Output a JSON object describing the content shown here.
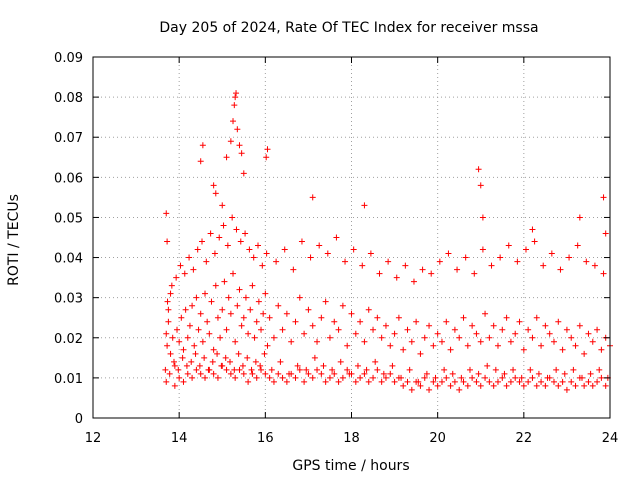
{
  "chart_data": {
    "type": "scatter",
    "title": "Day 205 of 2024, Rate Of TEC Index for receiver mssa",
    "xlabel": "GPS time / hours",
    "ylabel": "ROTI / TECUs",
    "xlim": [
      12,
      24
    ],
    "ylim": [
      0,
      0.09
    ],
    "xticks": [
      12,
      14,
      16,
      18,
      20,
      22,
      24
    ],
    "xtick_labels": [
      "12",
      "14",
      "16",
      "18",
      "20",
      "22",
      "24"
    ],
    "yticks": [
      0,
      0.01,
      0.02,
      0.03,
      0.04,
      0.05,
      0.06,
      0.07,
      0.08,
      0.09
    ],
    "ytick_labels": [
      "0",
      "0.01",
      "0.02",
      "0.03",
      "0.04",
      "0.05",
      "0.06",
      "0.07",
      "0.08",
      "0.09"
    ],
    "grid": true,
    "marker": "+",
    "color": "#ff0000",
    "series": [
      {
        "name": "ROTI",
        "x": [
          13.7,
          13.72,
          13.75,
          13.8,
          13.85,
          13.9,
          13.95,
          14.0,
          14.05,
          14.1,
          14.15,
          14.2,
          14.25,
          14.3,
          14.35,
          14.4,
          14.45,
          14.5,
          14.55,
          14.6,
          14.65,
          14.7,
          14.75,
          14.8,
          14.85,
          14.9,
          14.95,
          15.0,
          15.05,
          15.1,
          15.15,
          15.2,
          15.25,
          15.3,
          15.35,
          15.4,
          15.45,
          15.5,
          15.55,
          15.6,
          15.65,
          15.7,
          15.75,
          15.8,
          15.85,
          15.9,
          15.95,
          16.0,
          16.05,
          16.1,
          16.2,
          16.3,
          16.4,
          16.5,
          16.6,
          16.7,
          16.8,
          16.9,
          17.0,
          17.1,
          17.2,
          17.3,
          17.4,
          17.5,
          17.6,
          17.7,
          17.8,
          17.9,
          18.0,
          18.1,
          18.2,
          18.3,
          18.4,
          18.5,
          18.6,
          18.7,
          18.8,
          18.9,
          19.0,
          19.1,
          19.2,
          19.3,
          19.4,
          19.5,
          19.6,
          19.7,
          19.8,
          19.9,
          20.0,
          20.1,
          20.2,
          20.3,
          20.4,
          20.5,
          20.6,
          20.7,
          20.8,
          20.9,
          21.0,
          21.1,
          21.2,
          21.3,
          21.4,
          21.5,
          21.6,
          21.7,
          21.8,
          21.9,
          22.0,
          22.1,
          22.2,
          22.3,
          22.4,
          22.5,
          22.6,
          22.7,
          22.8,
          22.9,
          23.0,
          23.1,
          23.2,
          23.3,
          23.4,
          23.5,
          23.6,
          23.7,
          23.8,
          23.9,
          24.0,
          13.68,
          13.73,
          13.78,
          13.83,
          13.88,
          13.93,
          13.98,
          14.03,
          14.08,
          14.13,
          14.18,
          14.23,
          14.28,
          14.33,
          14.38,
          14.43,
          14.48,
          14.53,
          14.58,
          14.63,
          14.68,
          14.73,
          14.78,
          14.83,
          14.88,
          14.93,
          14.98,
          15.03,
          15.08,
          15.13,
          15.18,
          15.23,
          15.28,
          15.33,
          15.38,
          15.43,
          15.48,
          15.53,
          15.58,
          15.63,
          15.68,
          15.73,
          15.78,
          15.83,
          15.88,
          15.93,
          15.98,
          16.03,
          16.15,
          16.25,
          16.35,
          16.45,
          16.55,
          16.65,
          16.75,
          16.85,
          16.95,
          17.05,
          17.15,
          17.25,
          17.35,
          17.45,
          17.55,
          17.65,
          17.75,
          17.85,
          17.95,
          18.05,
          18.15,
          18.25,
          18.35,
          18.45,
          18.55,
          18.65,
          18.75,
          18.85,
          18.95,
          19.05,
          19.15,
          19.25,
          19.35,
          19.45,
          19.55,
          19.65,
          19.75,
          19.85,
          19.95,
          20.05,
          20.15,
          20.25,
          20.35,
          20.45,
          20.55,
          20.65,
          20.75,
          20.85,
          20.95,
          21.05,
          21.15,
          21.25,
          21.35,
          21.45,
          21.55,
          21.65,
          21.75,
          21.85,
          21.95,
          22.05,
          22.15,
          22.25,
          22.35,
          22.45,
          22.55,
          22.65,
          22.75,
          22.85,
          22.95,
          23.05,
          23.15,
          23.25,
          23.35,
          23.45,
          23.55,
          23.65,
          23.75,
          23.85,
          23.95,
          13.7,
          13.75,
          13.8,
          13.9,
          14.0,
          14.1,
          14.2,
          14.3,
          14.4,
          14.5,
          14.6,
          14.7,
          14.8,
          14.9,
          15.0,
          15.1,
          15.2,
          15.3,
          15.4,
          15.5,
          15.6,
          15.7,
          15.8,
          15.9,
          16.0,
          16.1,
          16.2,
          16.3,
          16.4,
          16.5,
          16.6,
          16.7,
          16.8,
          16.9,
          17.0,
          17.1,
          17.2,
          17.3,
          17.4,
          17.5,
          17.6,
          17.7,
          17.8,
          17.9,
          18.0,
          18.1,
          18.2,
          18.3,
          18.4,
          18.5,
          18.6,
          18.7,
          18.8,
          18.9,
          19.0,
          19.1,
          19.2,
          19.3,
          19.4,
          19.5,
          19.6,
          19.7,
          19.8,
          19.9,
          20.0,
          20.1,
          20.2,
          20.3,
          20.4,
          20.5,
          20.6,
          20.7,
          20.8,
          20.9,
          21.0,
          21.1,
          21.2,
          21.3,
          21.4,
          21.5,
          21.6,
          21.7,
          21.8,
          21.9,
          22.0,
          22.1,
          22.2,
          22.3,
          22.4,
          22.5,
          22.6,
          22.7,
          22.8,
          22.9,
          23.0,
          23.1,
          23.2,
          23.3,
          23.4,
          23.5,
          23.6,
          23.7,
          23.8,
          23.9,
          13.7,
          13.72,
          14.5,
          14.55,
          14.8,
          14.85,
          15.0,
          15.1,
          15.2,
          15.25,
          15.28,
          15.3,
          15.32,
          15.35,
          15.4,
          15.45,
          15.5,
          16.02,
          16.05,
          17.1,
          18.3,
          20.95,
          21.0,
          21.05,
          22.2,
          23.3,
          23.85,
          23.9
        ],
        "y": [
          0.021,
          0.018,
          0.024,
          0.016,
          0.02,
          0.013,
          0.022,
          0.019,
          0.025,
          0.017,
          0.027,
          0.02,
          0.023,
          0.028,
          0.018,
          0.03,
          0.022,
          0.026,
          0.019,
          0.031,
          0.024,
          0.021,
          0.029,
          0.017,
          0.033,
          0.025,
          0.02,
          0.027,
          0.034,
          0.022,
          0.03,
          0.026,
          0.036,
          0.019,
          0.028,
          0.032,
          0.023,
          0.025,
          0.03,
          0.021,
          0.027,
          0.033,
          0.02,
          0.024,
          0.029,
          0.022,
          0.026,
          0.031,
          0.018,
          0.025,
          0.02,
          0.028,
          0.022,
          0.026,
          0.019,
          0.024,
          0.03,
          0.021,
          0.027,
          0.023,
          0.019,
          0.025,
          0.029,
          0.02,
          0.024,
          0.022,
          0.028,
          0.018,
          0.026,
          0.021,
          0.024,
          0.019,
          0.027,
          0.022,
          0.025,
          0.02,
          0.023,
          0.018,
          0.021,
          0.025,
          0.017,
          0.022,
          0.019,
          0.024,
          0.016,
          0.02,
          0.023,
          0.018,
          0.021,
          0.019,
          0.024,
          0.017,
          0.022,
          0.02,
          0.025,
          0.018,
          0.023,
          0.021,
          0.019,
          0.026,
          0.02,
          0.023,
          0.018,
          0.022,
          0.025,
          0.019,
          0.021,
          0.024,
          0.017,
          0.022,
          0.02,
          0.025,
          0.018,
          0.023,
          0.021,
          0.019,
          0.024,
          0.017,
          0.022,
          0.02,
          0.018,
          0.023,
          0.016,
          0.021,
          0.019,
          0.022,
          0.017,
          0.02,
          0.018,
          0.012,
          0.029,
          0.011,
          0.033,
          0.014,
          0.035,
          0.012,
          0.038,
          0.015,
          0.036,
          0.013,
          0.04,
          0.014,
          0.037,
          0.016,
          0.042,
          0.013,
          0.044,
          0.015,
          0.039,
          0.012,
          0.046,
          0.014,
          0.041,
          0.016,
          0.045,
          0.013,
          0.048,
          0.015,
          0.043,
          0.014,
          0.05,
          0.012,
          0.047,
          0.016,
          0.044,
          0.013,
          0.046,
          0.015,
          0.042,
          0.012,
          0.04,
          0.014,
          0.043,
          0.013,
          0.038,
          0.016,
          0.041,
          0.012,
          0.039,
          0.014,
          0.042,
          0.011,
          0.037,
          0.013,
          0.044,
          0.012,
          0.04,
          0.015,
          0.043,
          0.013,
          0.041,
          0.012,
          0.045,
          0.014,
          0.039,
          0.011,
          0.042,
          0.013,
          0.038,
          0.012,
          0.041,
          0.014,
          0.036,
          0.011,
          0.039,
          0.013,
          0.035,
          0.01,
          0.038,
          0.012,
          0.034,
          0.009,
          0.037,
          0.011,
          0.036,
          0.01,
          0.039,
          0.012,
          0.041,
          0.011,
          0.037,
          0.01,
          0.04,
          0.012,
          0.036,
          0.011,
          0.042,
          0.013,
          0.038,
          0.012,
          0.04,
          0.011,
          0.043,
          0.012,
          0.039,
          0.01,
          0.042,
          0.012,
          0.044,
          0.011,
          0.038,
          0.01,
          0.041,
          0.012,
          0.037,
          0.011,
          0.04,
          0.012,
          0.043,
          0.01,
          0.039,
          0.011,
          0.038,
          0.012,
          0.036,
          0.01,
          0.009,
          0.027,
          0.031,
          0.008,
          0.01,
          0.009,
          0.011,
          0.01,
          0.012,
          0.011,
          0.01,
          0.012,
          0.011,
          0.01,
          0.013,
          0.012,
          0.011,
          0.01,
          0.012,
          0.011,
          0.009,
          0.011,
          0.01,
          0.012,
          0.011,
          0.01,
          0.009,
          0.011,
          0.01,
          0.009,
          0.011,
          0.01,
          0.012,
          0.009,
          0.011,
          0.01,
          0.012,
          0.011,
          0.009,
          0.01,
          0.011,
          0.009,
          0.01,
          0.012,
          0.011,
          0.009,
          0.01,
          0.011,
          0.009,
          0.01,
          0.012,
          0.009,
          0.01,
          0.011,
          0.009,
          0.01,
          0.008,
          0.009,
          0.007,
          0.009,
          0.008,
          0.01,
          0.007,
          0.009,
          0.008,
          0.009,
          0.01,
          0.008,
          0.009,
          0.007,
          0.009,
          0.008,
          0.01,
          0.009,
          0.008,
          0.01,
          0.009,
          0.008,
          0.009,
          0.01,
          0.008,
          0.009,
          0.01,
          0.009,
          0.008,
          0.009,
          0.01,
          0.008,
          0.009,
          0.008,
          0.01,
          0.009,
          0.008,
          0.009,
          0.007,
          0.009,
          0.008,
          0.01,
          0.008,
          0.009,
          0.008,
          0.009,
          0.01,
          0.008,
          0.051,
          0.044,
          0.064,
          0.068,
          0.058,
          0.056,
          0.053,
          0.065,
          0.069,
          0.074,
          0.078,
          0.08,
          0.081,
          0.072,
          0.068,
          0.066,
          0.061,
          0.065,
          0.067,
          0.055,
          0.053,
          0.062,
          0.058,
          0.05,
          0.047,
          0.05,
          0.055,
          0.046
        ]
      }
    ]
  }
}
